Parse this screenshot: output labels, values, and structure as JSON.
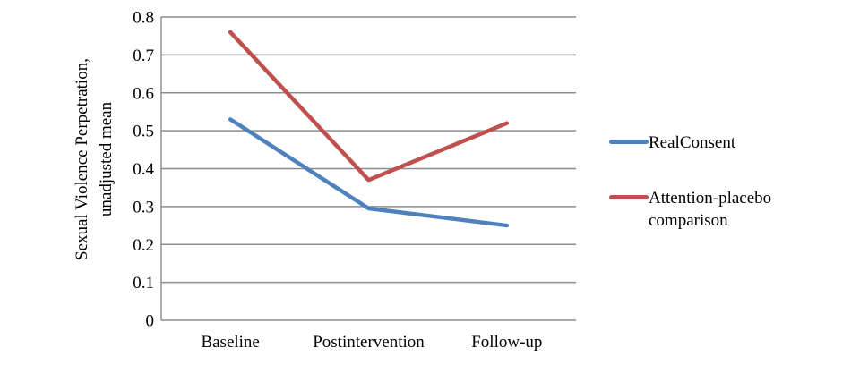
{
  "chart_data": {
    "type": "line",
    "title": "",
    "categories": [
      "Baseline",
      "Postintervention",
      "Follow-up"
    ],
    "series": [
      {
        "id": "realconsent",
        "name": "RealConsent",
        "color": "#4F81BD",
        "values": [
          0.53,
          0.295,
          0.25
        ]
      },
      {
        "id": "attention-placebo",
        "name": "Attention-placebo comparison",
        "color": "#C0504D",
        "values": [
          0.76,
          0.37,
          0.52
        ]
      }
    ],
    "xlabel": "",
    "ylabel": "Sexual Violence Perpetration, unadjusted mean",
    "ylabel_lines": [
      "Sexual Violence Perpetration,",
      "unadjusted mean"
    ],
    "ylim": [
      0,
      0.8
    ],
    "ytick_step": 0.1,
    "yticks": [
      "0",
      "0.1",
      "0.2",
      "0.3",
      "0.4",
      "0.5",
      "0.6",
      "0.7",
      "0.8"
    ],
    "grid": "horizontal",
    "gridline_color": "#8C8C8C",
    "legend_position": "right"
  }
}
